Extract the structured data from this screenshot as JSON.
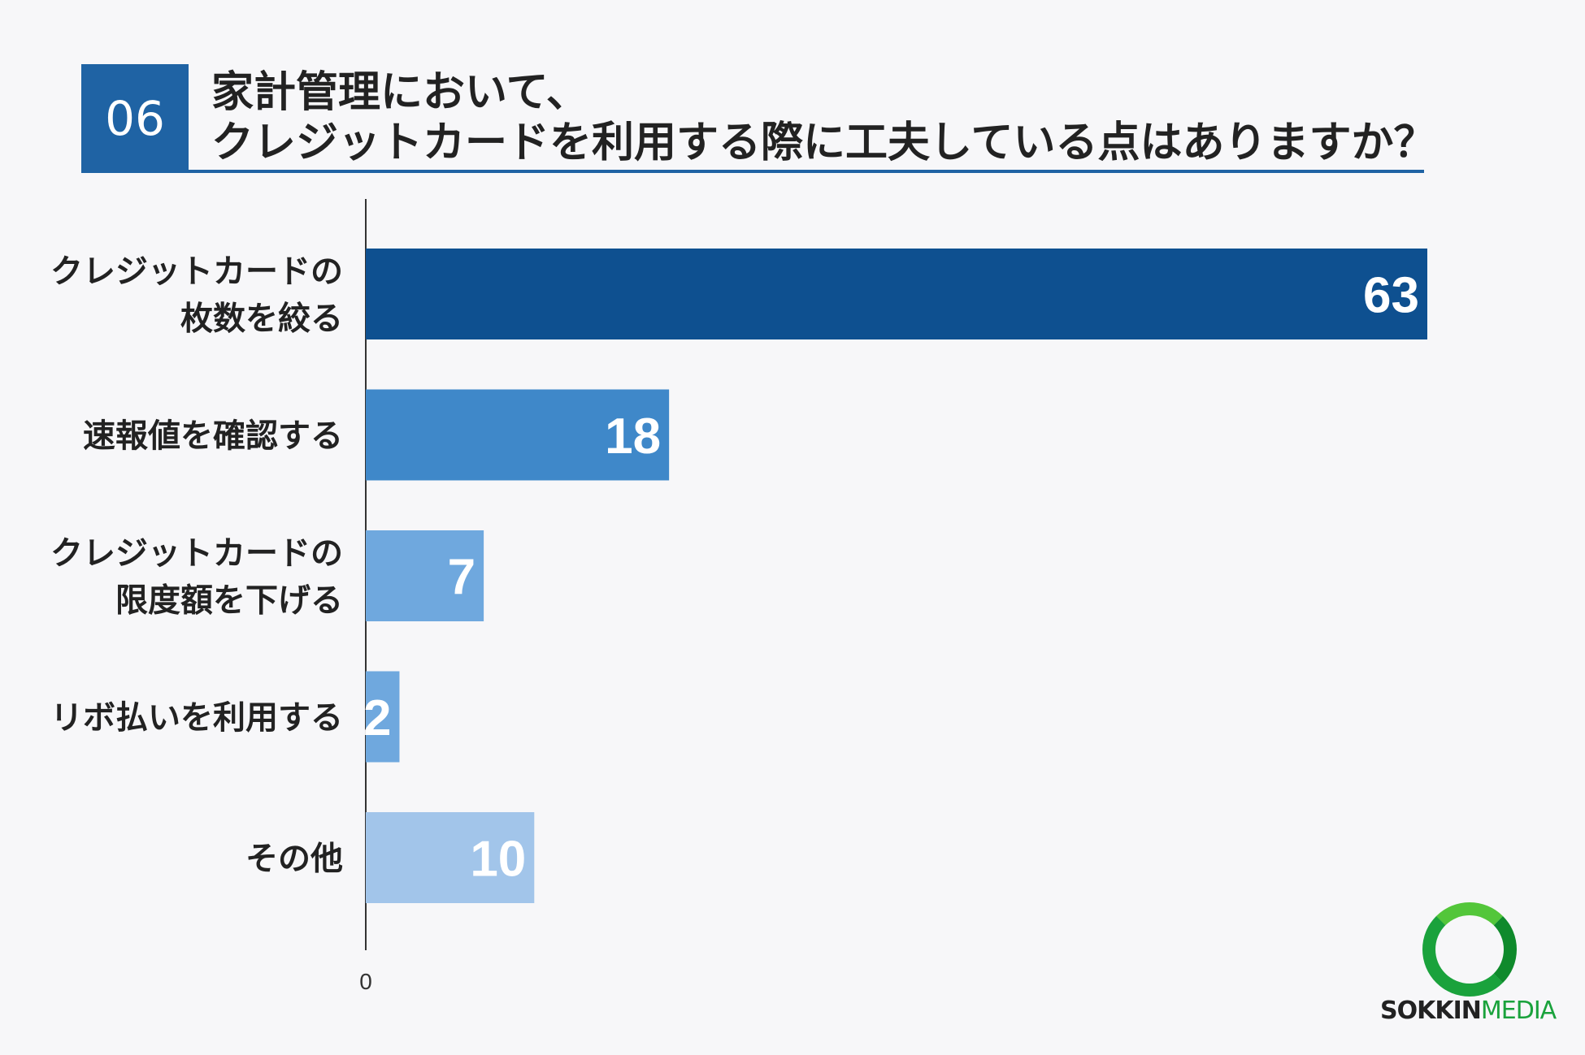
{
  "header": {
    "question_number": "06",
    "title_line1": "家計管理において、",
    "title_line2": "クレジットカードを利用する際に工夫している点はありますか？"
  },
  "chart_data": {
    "type": "bar",
    "orientation": "horizontal",
    "categories": [
      "クレジットカードの\n枚数を絞る",
      "速報値を確認する",
      "クレジットカードの\n限度額を下げる",
      "リボ払いを利用する",
      "その他"
    ],
    "values": [
      63,
      18,
      7,
      2,
      10
    ],
    "colors": [
      "#0e5090",
      "#3f88c9",
      "#6fa8de",
      "#6fa8de",
      "#a2c5ea"
    ],
    "axis_tick_labels": [
      "0"
    ],
    "xlim": [
      0,
      63
    ]
  },
  "logo": {
    "text_part1": "SOKKIN",
    "text_part2": "MEDIA"
  }
}
